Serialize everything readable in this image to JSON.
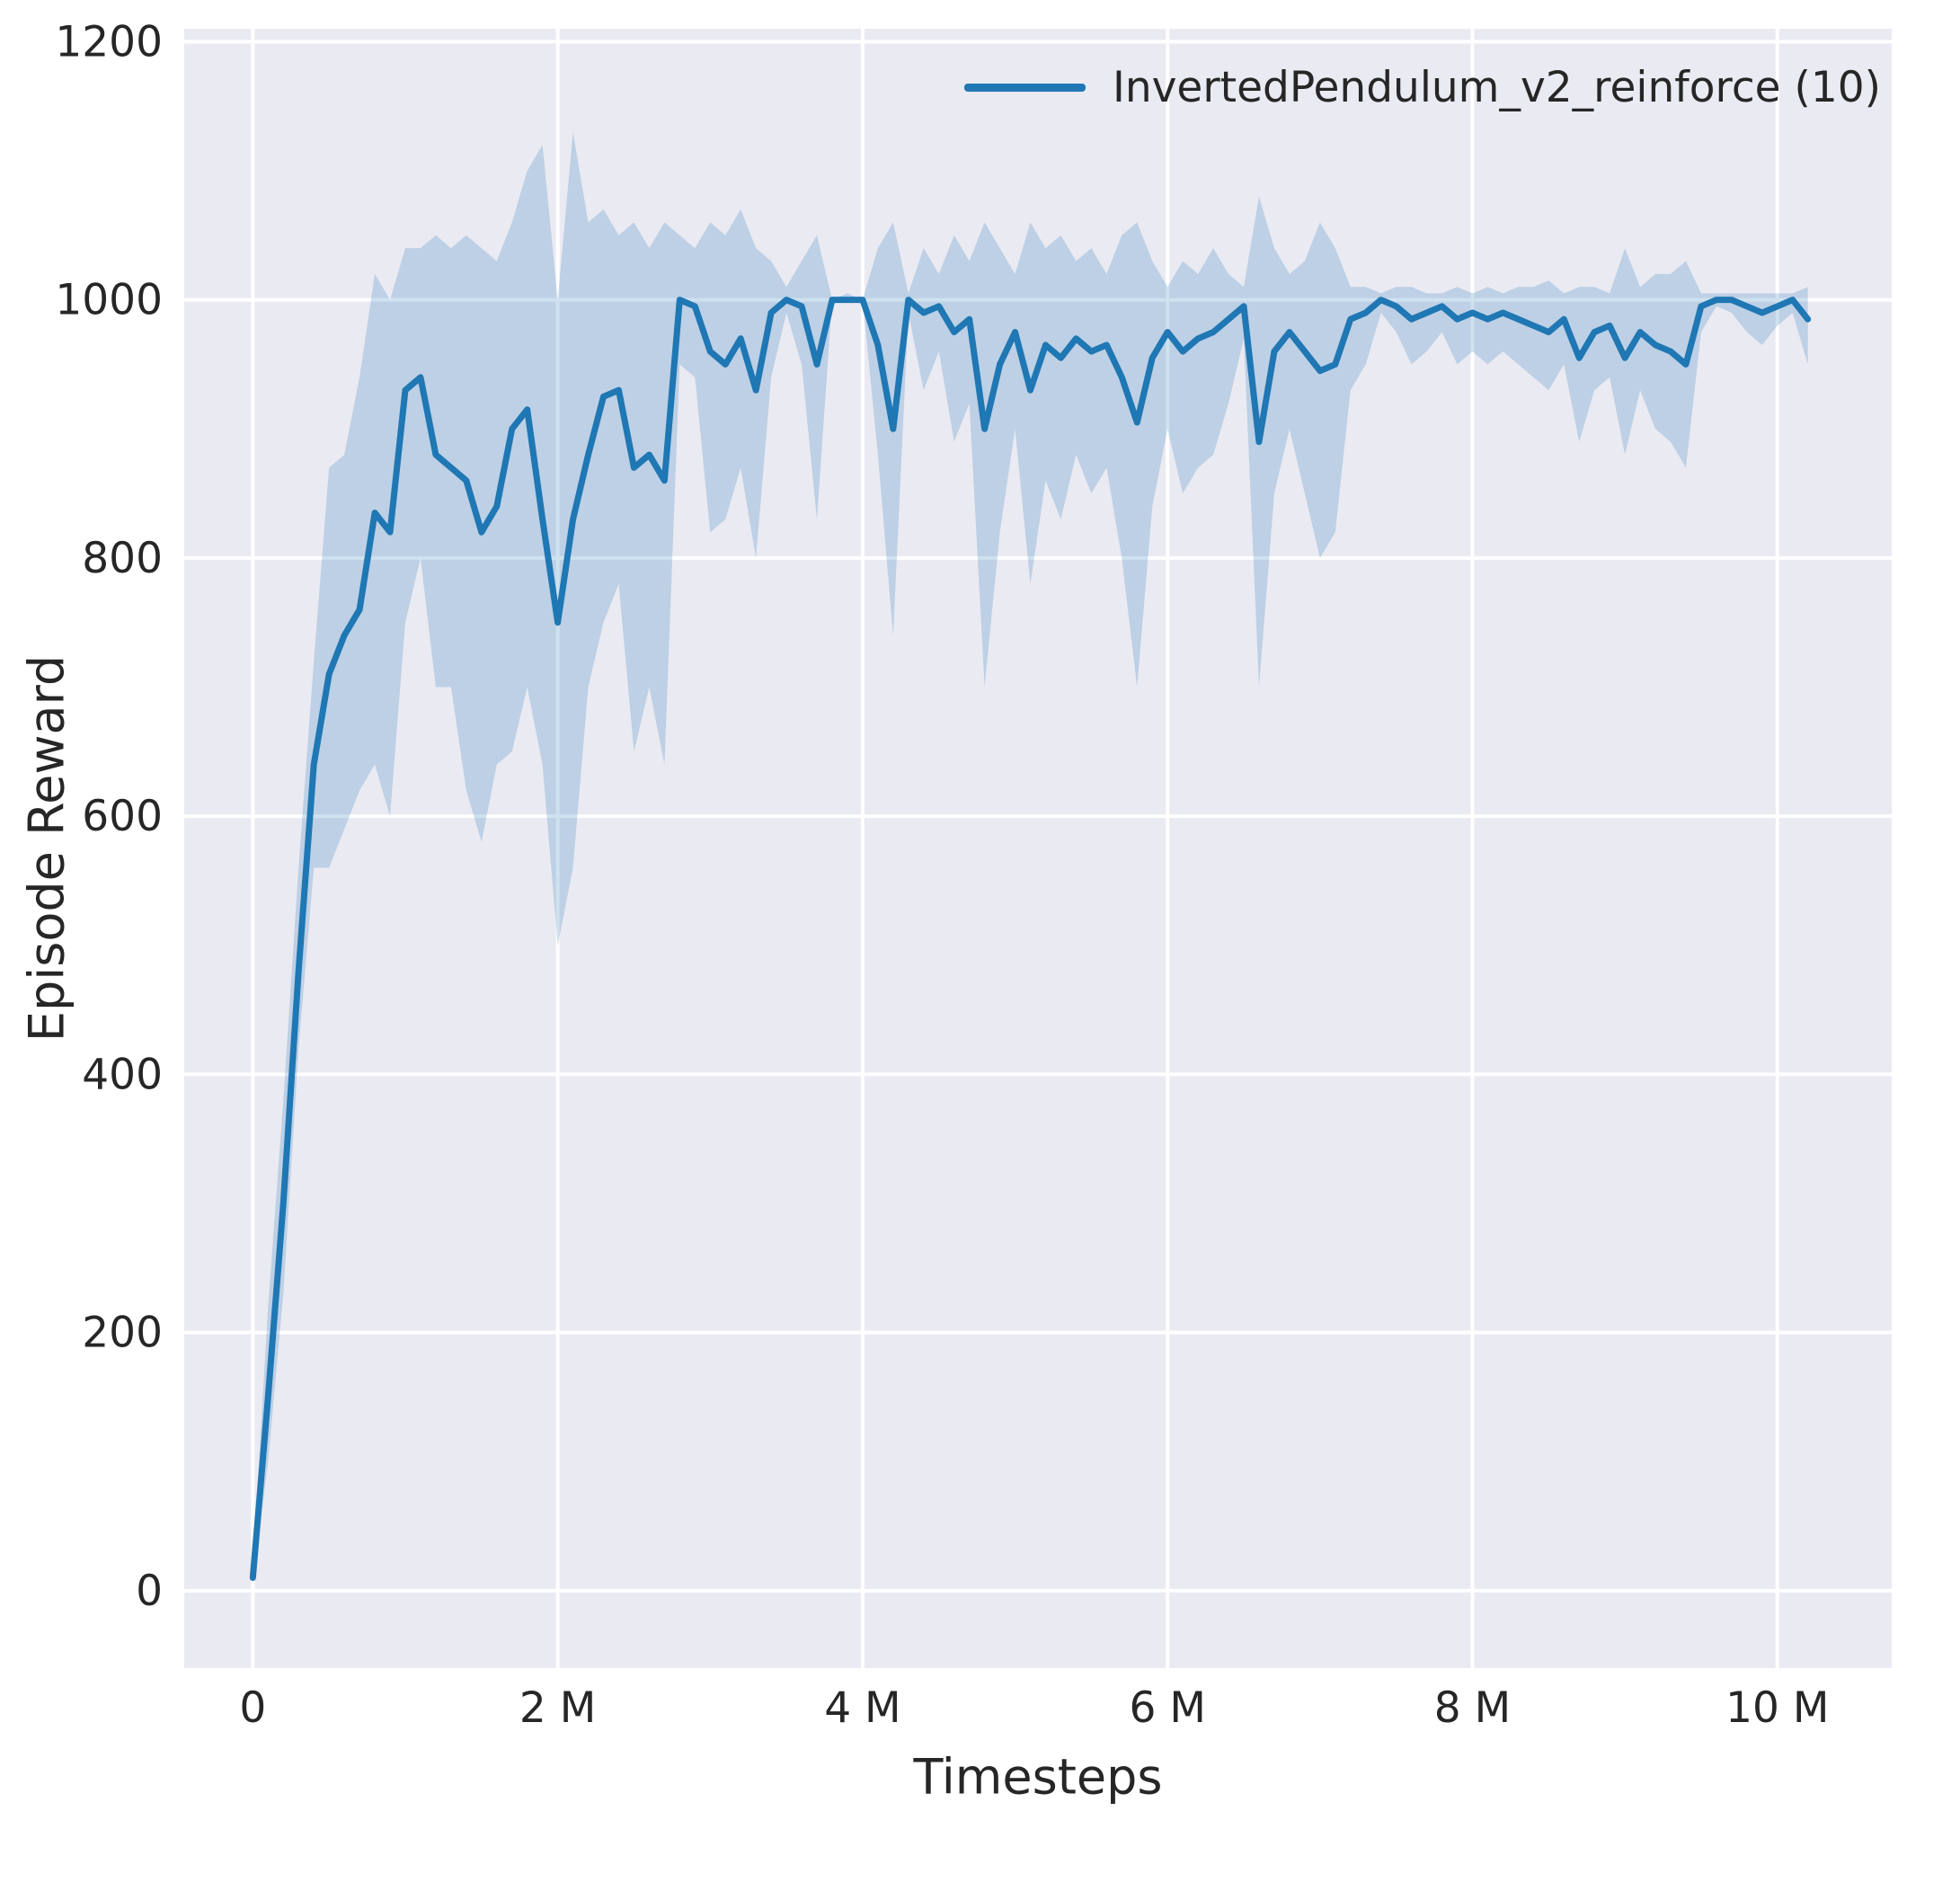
{
  "chart_data": {
    "type": "line",
    "title": "",
    "xlabel": "Timesteps",
    "ylabel": "Episode Reward",
    "legend_position": "upper right",
    "grid": true,
    "xlim": [
      -0.45,
      10.75
    ],
    "ylim": [
      -60,
      1210
    ],
    "x_unit": "million timesteps",
    "x_ticks": {
      "values": [
        0,
        2,
        4,
        6,
        8,
        10
      ],
      "labels": [
        "0",
        "2 M",
        "4 M",
        "6 M",
        "8 M",
        "10 M"
      ]
    },
    "y_ticks": {
      "values": [
        0,
        200,
        400,
        600,
        800,
        1000,
        1200
      ],
      "labels": [
        "0",
        "200",
        "400",
        "600",
        "800",
        "1000",
        "1200"
      ]
    },
    "colors": {
      "plot_background": "#eaeaf2",
      "grid": "#ffffff",
      "text": "#262626",
      "line": "#1f77b4"
    },
    "series": [
      {
        "name": "InvertedPendulum_v2_reinforce (10)",
        "color": "#1f77b4",
        "band_opacity": 0.22,
        "x": [
          0,
          0.1,
          0.2,
          0.3,
          0.4,
          0.5,
          0.6,
          0.7,
          0.8,
          0.9,
          1,
          1.1,
          1.2,
          1.3,
          1.4,
          1.5,
          1.6,
          1.7,
          1.8,
          1.9,
          2,
          2.1,
          2.2,
          2.3,
          2.4,
          2.5,
          2.6,
          2.7,
          2.8,
          2.9,
          3,
          3.1,
          3.2,
          3.3,
          3.4,
          3.5,
          3.6,
          3.7,
          3.8,
          3.9,
          4,
          4.1,
          4.2,
          4.3,
          4.4,
          4.5,
          4.6,
          4.7,
          4.8,
          4.9,
          5,
          5.1,
          5.2,
          5.3,
          5.4,
          5.5,
          5.6,
          5.7,
          5.8,
          5.9,
          6,
          6.1,
          6.2,
          6.3,
          6.4,
          6.5,
          6.6,
          6.7,
          6.8,
          6.9,
          7,
          7.1,
          7.2,
          7.3,
          7.4,
          7.5,
          7.6,
          7.7,
          7.8,
          7.9,
          8,
          8.1,
          8.2,
          8.3,
          8.4,
          8.5,
          8.6,
          8.7,
          8.8,
          8.9,
          9,
          9.1,
          9.2,
          9.3,
          9.4,
          9.5,
          9.6,
          9.7,
          9.8,
          9.9,
          10,
          10.1,
          10.2
        ],
        "mean": [
          10,
          150,
          300,
          480,
          640,
          710,
          740,
          760,
          835,
          820,
          930,
          940,
          880,
          870,
          860,
          820,
          840,
          900,
          915,
          830,
          750,
          830,
          880,
          925,
          930,
          870,
          880,
          860,
          1000,
          995,
          960,
          950,
          970,
          930,
          990,
          1000,
          995,
          950,
          1000,
          1000,
          1000,
          965,
          900,
          1000,
          990,
          995,
          975,
          985,
          900,
          950,
          975,
          930,
          965,
          955,
          970,
          960,
          965,
          940,
          905,
          955,
          975,
          960,
          970,
          975,
          985,
          995,
          890,
          960,
          975,
          960,
          945,
          950,
          985,
          990,
          1000,
          995,
          985,
          990,
          995,
          985,
          990,
          985,
          990,
          985,
          980,
          975,
          985,
          955,
          975,
          980,
          955,
          975,
          965,
          960,
          950,
          995,
          1000,
          1000,
          995,
          990,
          995,
          1000,
          985
        ],
        "lower": [
          5,
          100,
          230,
          420,
          560,
          560,
          590,
          620,
          640,
          600,
          750,
          800,
          700,
          700,
          620,
          580,
          640,
          650,
          700,
          640,
          500,
          560,
          700,
          750,
          780,
          650,
          700,
          640,
          950,
          940,
          820,
          830,
          870,
          800,
          940,
          990,
          950,
          830,
          1000,
          1000,
          1000,
          880,
          740,
          990,
          930,
          960,
          890,
          920,
          700,
          820,
          900,
          780,
          860,
          830,
          880,
          850,
          870,
          800,
          700,
          840,
          900,
          850,
          870,
          880,
          920,
          970,
          700,
          850,
          900,
          850,
          800,
          820,
          930,
          950,
          990,
          975,
          950,
          960,
          975,
          950,
          960,
          950,
          960,
          950,
          940,
          930,
          950,
          890,
          930,
          940,
          880,
          930,
          900,
          890,
          870,
          975,
          995,
          990,
          975,
          965,
          980,
          990,
          950
        ],
        "upper": [
          20,
          220,
          380,
          560,
          720,
          870,
          880,
          940,
          1020,
          1000,
          1040,
          1040,
          1050,
          1040,
          1050,
          1040,
          1030,
          1060,
          1100,
          1120,
          1000,
          1130,
          1060,
          1070,
          1050,
          1060,
          1040,
          1060,
          1050,
          1040,
          1060,
          1050,
          1070,
          1040,
          1030,
          1010,
          1030,
          1050,
          1000,
          1005,
          1000,
          1040,
          1060,
          1005,
          1040,
          1020,
          1050,
          1030,
          1060,
          1040,
          1020,
          1060,
          1040,
          1050,
          1030,
          1040,
          1020,
          1050,
          1060,
          1030,
          1010,
          1030,
          1020,
          1040,
          1020,
          1010,
          1080,
          1040,
          1020,
          1030,
          1060,
          1040,
          1010,
          1010,
          1005,
          1010,
          1010,
          1005,
          1005,
          1010,
          1005,
          1010,
          1005,
          1010,
          1010,
          1015,
          1005,
          1010,
          1010,
          1005,
          1040,
          1010,
          1020,
          1020,
          1030,
          1005,
          1005,
          1005,
          1005,
          1005,
          1005,
          1005,
          1010
        ]
      }
    ]
  }
}
